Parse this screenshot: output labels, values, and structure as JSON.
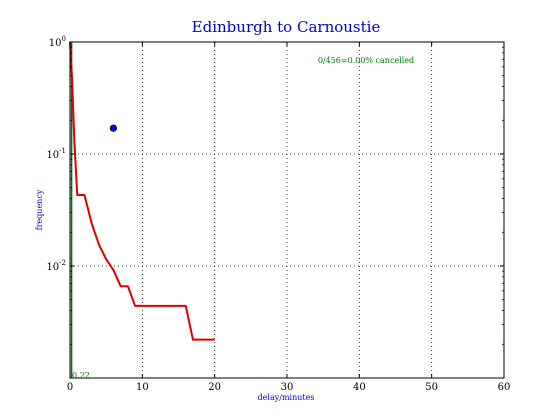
{
  "chart_data": {
    "type": "line",
    "title": "Edinburgh to Carnoustie",
    "xlabel": "delay/minutes",
    "ylabel": "frequency",
    "xlim": [
      0,
      60
    ],
    "ylim": [
      0.001,
      1
    ],
    "yscale": "log",
    "grid": true,
    "x_ticks": [
      "0",
      "10",
      "20",
      "30",
      "40",
      "50",
      "60"
    ],
    "y_ticks": [
      {
        "base": "10",
        "exp": "0"
      },
      {
        "base": "10",
        "exp": "-1"
      },
      {
        "base": "10",
        "exp": "-2"
      }
    ],
    "annotation": "0/456=0.00% cancelled",
    "mean_label": "0.22",
    "series": [
      {
        "color": "#dd0000",
        "x": [
          0,
          0.3,
          0.6,
          1,
          2,
          3,
          4,
          5,
          6,
          7,
          8,
          9,
          10,
          11,
          12,
          13,
          14,
          15,
          16,
          17,
          18,
          19,
          20
        ],
        "y": [
          1,
          0.45,
          0.13,
          0.043,
          0.043,
          0.024,
          0.0155,
          0.0115,
          0.0092,
          0.0066,
          0.0066,
          0.0044,
          0.0044,
          0.0044,
          0.0044,
          0.0044,
          0.0044,
          0.0044,
          0.0044,
          0.0022,
          0.0022,
          0.0022,
          0.0022
        ]
      }
    ],
    "point": {
      "x": 6,
      "y": 0.17,
      "color": "#0000ff"
    },
    "mean_line": {
      "x": 0.22,
      "color": "#007700"
    }
  }
}
